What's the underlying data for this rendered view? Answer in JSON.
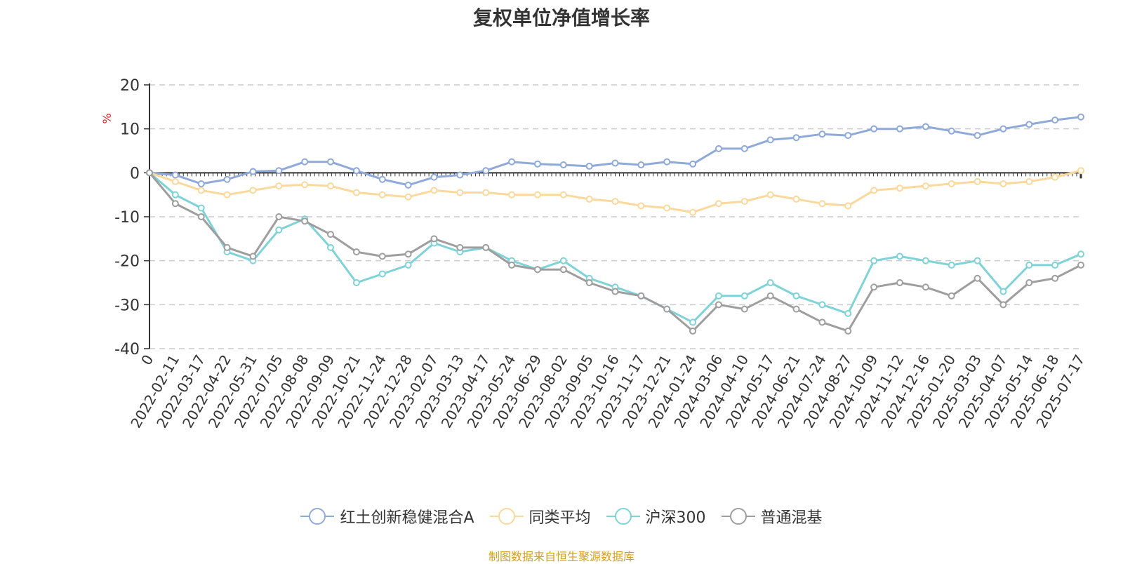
{
  "chart_data": {
    "type": "line",
    "title": "复权单位净值增长率",
    "ylabel": "%",
    "ylim": [
      -40,
      20
    ],
    "yticks": [
      20,
      10,
      0,
      -10,
      -20,
      -30,
      -40
    ],
    "grid": "horizontal dashed",
    "legend_position": "bottom",
    "source": "制图数据来自恒生聚源数据库",
    "x_labels": [
      "0",
      "2022-02-11",
      "2022-03-17",
      "2022-04-22",
      "2022-05-31",
      "2022-07-05",
      "2022-08-08",
      "2022-09-09",
      "2022-10-21",
      "2022-11-24",
      "2022-12-28",
      "2023-02-07",
      "2023-03-13",
      "2023-04-17",
      "2023-05-24",
      "2023-06-29",
      "2023-08-02",
      "2023-09-05",
      "2023-10-16",
      "2023-11-17",
      "2023-12-21",
      "2024-01-24",
      "2024-03-06",
      "2024-04-10",
      "2024-05-17",
      "2024-06-21",
      "2024-07-24",
      "2024-08-27",
      "2024-10-09",
      "2024-11-12",
      "2024-12-16",
      "2025-01-20",
      "2025-03-03",
      "2025-04-07",
      "2025-05-14",
      "2025-06-18",
      "2025-07-17"
    ],
    "series": [
      {
        "name": "红土创新稳健混合A",
        "color": "#8fa9d9",
        "values": [
          0,
          -0.5,
          -2.5,
          -1.5,
          0.3,
          0.5,
          2.5,
          2.5,
          0.5,
          -1.5,
          -2.8,
          -1,
          -0.5,
          0.5,
          2.5,
          2,
          1.8,
          1.5,
          2.2,
          1.8,
          2.5,
          2,
          5.5,
          5.5,
          7.5,
          8,
          8.8,
          8.5,
          10,
          10,
          10.5,
          9.5,
          8.5,
          10,
          11,
          12,
          12.7
        ]
      },
      {
        "name": "同类平均",
        "color": "#fbd89c",
        "values": [
          0,
          -2,
          -4,
          -5,
          -4,
          -3,
          -2.7,
          -3,
          -4.5,
          -5,
          -5.5,
          -4,
          -4.5,
          -4.5,
          -5,
          -5,
          -5,
          -6,
          -6.5,
          -7.5,
          -8,
          -9,
          -7,
          -6.5,
          -5,
          -6,
          -7,
          -7.5,
          -4,
          -3.5,
          -3,
          -2.5,
          -2,
          -2.5,
          -2,
          -1,
          0.5
        ]
      },
      {
        "name": "沪深300",
        "color": "#7fd3d8",
        "values": [
          0,
          -5,
          -8,
          -18,
          -20,
          -13,
          -10.5,
          -17,
          -25,
          -23,
          -21,
          -16,
          -18,
          -17,
          -20,
          -22,
          -20,
          -24,
          -26,
          -28,
          -31,
          -34,
          -28,
          -28,
          -25,
          -28,
          -30,
          -32,
          -20,
          -19,
          -20,
          -21,
          -20,
          -27,
          -21,
          -21,
          -18.5
        ]
      },
      {
        "name": "普通混基",
        "color": "#9e9e9e",
        "values": [
          0,
          -7,
          -10,
          -17,
          -19,
          -10,
          -11,
          -14,
          -18,
          -19,
          -18.5,
          -15,
          -17,
          -17,
          -21,
          -22,
          -22,
          -25,
          -27,
          -28,
          -31,
          -36,
          -30,
          -31,
          -28,
          -31,
          -34,
          -36,
          -26,
          -25,
          -26,
          -28,
          -24,
          -30,
          -25,
          -24,
          -21
        ]
      }
    ]
  }
}
